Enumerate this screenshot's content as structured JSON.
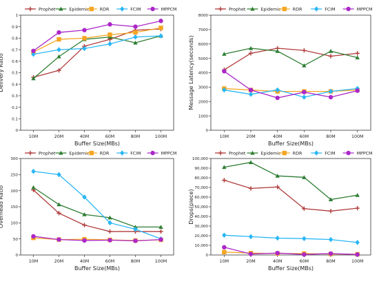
{
  "legend_entries": [
    "Prophet",
    "Epidemic",
    "RDR",
    "FCIM",
    "MPPCM"
  ],
  "colors": {
    "Prophet": "#b03a3a",
    "Epidemic": "#2e7d32",
    "RDR": "#f5a623",
    "FCIM": "#29b6f6",
    "MPPCM": "#ab27c9"
  },
  "markers": {
    "Prophet": "plus",
    "Epidemic": "triangle",
    "RDR": "square",
    "FCIM": "diamond",
    "MPPCM": "circle"
  },
  "chart_data": [
    {
      "type": "line",
      "title": "",
      "categories": [
        "10M",
        "20M",
        "40M",
        "60M",
        "80M",
        "100M"
      ],
      "xlabel": "Buffer Size(MBs)",
      "ylabel": "Delivery Ratio",
      "ylim": [
        0,
        1
      ],
      "yticks": [
        "0",
        "0.1",
        "0.2",
        "0.3",
        "0.4",
        "0.5",
        "0.6",
        "0.7",
        "0.8",
        "0.9",
        "1"
      ],
      "grid": false,
      "legend": "top",
      "series": [
        {
          "name": "Prophet",
          "values": [
            0.46,
            0.52,
            0.73,
            0.79,
            0.87,
            0.88
          ]
        },
        {
          "name": "Epidemic",
          "values": [
            0.45,
            0.64,
            0.79,
            0.81,
            0.76,
            0.82
          ]
        },
        {
          "name": "RDR",
          "values": [
            0.68,
            0.79,
            0.8,
            0.83,
            0.85,
            0.89
          ]
        },
        {
          "name": "FCIM",
          "values": [
            0.66,
            0.7,
            0.71,
            0.75,
            0.81,
            0.82
          ]
        },
        {
          "name": "MPPCM",
          "values": [
            0.69,
            0.85,
            0.87,
            0.92,
            0.9,
            0.95
          ]
        }
      ]
    },
    {
      "type": "line",
      "title": "",
      "categories": [
        "10M",
        "20M",
        "40M",
        "60M",
        "80M",
        "100M"
      ],
      "xlabel": "Buffer Size(MBs)",
      "ylabel": "Message Latency(seconds)",
      "ylim": [
        0,
        8000
      ],
      "yticks": [
        "0",
        "1000",
        "2000",
        "3000",
        "4000",
        "5000",
        "6000",
        "7000",
        "8000"
      ],
      "grid": false,
      "legend": "top",
      "series": [
        {
          "name": "Prophet",
          "values": [
            4200,
            5350,
            5700,
            5550,
            5150,
            5350
          ]
        },
        {
          "name": "Epidemic",
          "values": [
            5300,
            5700,
            5500,
            4500,
            5500,
            5050
          ]
        },
        {
          "name": "RDR",
          "values": [
            2900,
            2800,
            2700,
            2700,
            2700,
            2800
          ]
        },
        {
          "name": "FCIM",
          "values": [
            2800,
            2500,
            2800,
            2300,
            2700,
            2900
          ]
        },
        {
          "name": "MPPCM",
          "values": [
            4100,
            2800,
            2250,
            2650,
            2300,
            2750
          ]
        }
      ]
    },
    {
      "type": "line",
      "title": "",
      "categories": [
        "10M",
        "20M",
        "40M",
        "60M",
        "80M",
        "100M"
      ],
      "xlabel": "Buffer Size(MBs)",
      "ylabel": "Overhead Ratio",
      "ylim": [
        0,
        300
      ],
      "yticks": [
        "0",
        "50",
        "100",
        "150",
        "200",
        "250",
        "300"
      ],
      "grid": false,
      "legend": "top",
      "series": [
        {
          "name": "Prophet",
          "values": [
            202,
            130,
            93,
            73,
            73,
            73
          ]
        },
        {
          "name": "Epidemic",
          "values": [
            210,
            157,
            126,
            116,
            87,
            87
          ]
        },
        {
          "name": "RDR",
          "values": [
            53,
            48,
            49,
            47,
            45,
            47
          ]
        },
        {
          "name": "FCIM",
          "values": [
            260,
            250,
            180,
            100,
            80,
            50
          ]
        },
        {
          "name": "MPPCM",
          "values": [
            58,
            48,
            45,
            46,
            44,
            48
          ]
        }
      ]
    },
    {
      "type": "line",
      "title": "",
      "categories": [
        "10M",
        "20M",
        "40M",
        "60M",
        "80M",
        "100M"
      ],
      "xlabel": "Buffer Size(MBs)",
      "ylabel": "Drops(piece)",
      "ylim": [
        0,
        100000
      ],
      "yticks": [
        "0",
        "10,000",
        "20,000",
        "30,000",
        "40,000",
        "50,000",
        "60,000",
        "70,000",
        "80,000",
        "90,000",
        "100,000"
      ],
      "grid": false,
      "legend": "top",
      "series": [
        {
          "name": "Prophet",
          "values": [
            77500,
            69000,
            70500,
            48000,
            45500,
            48500
          ]
        },
        {
          "name": "Epidemic",
          "values": [
            91000,
            96000,
            82000,
            80500,
            57500,
            62000
          ]
        },
        {
          "name": "RDR",
          "values": [
            3000,
            2000,
            1500,
            1500,
            1000,
            800
          ]
        },
        {
          "name": "FCIM",
          "values": [
            20500,
            19000,
            17500,
            17000,
            16000,
            13000
          ]
        },
        {
          "name": "MPPCM",
          "values": [
            8000,
            1000,
            2000,
            500,
            1500,
            500
          ]
        }
      ]
    }
  ]
}
